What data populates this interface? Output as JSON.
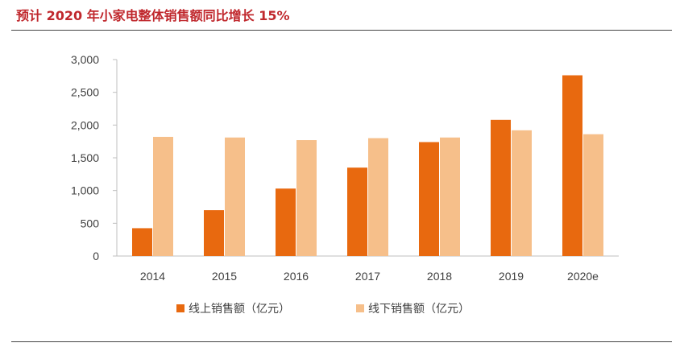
{
  "title": "预计 2020 年小家电整体销售额同比增长 15%",
  "chart_data": {
    "type": "bar",
    "categories": [
      "2014",
      "2015",
      "2016",
      "2017",
      "2018",
      "2019",
      "2020e"
    ],
    "series": [
      {
        "name": "线上销售额（亿元）",
        "color": "#e8690f",
        "values": [
          425,
          700,
          1030,
          1350,
          1740,
          2080,
          2760
        ]
      },
      {
        "name": "线下销售额（亿元）",
        "color": "#f6bf8a",
        "values": [
          1820,
          1810,
          1770,
          1800,
          1810,
          1920,
          1860
        ]
      }
    ],
    "ylim": [
      0,
      3000
    ],
    "yticks": [
      0,
      500,
      1000,
      1500,
      2000,
      2500,
      3000
    ],
    "ytick_labels": [
      "0",
      "500",
      "1,000",
      "1,500",
      "2,000",
      "2,500",
      "3,000"
    ],
    "grid": false,
    "legend": "bottom"
  }
}
